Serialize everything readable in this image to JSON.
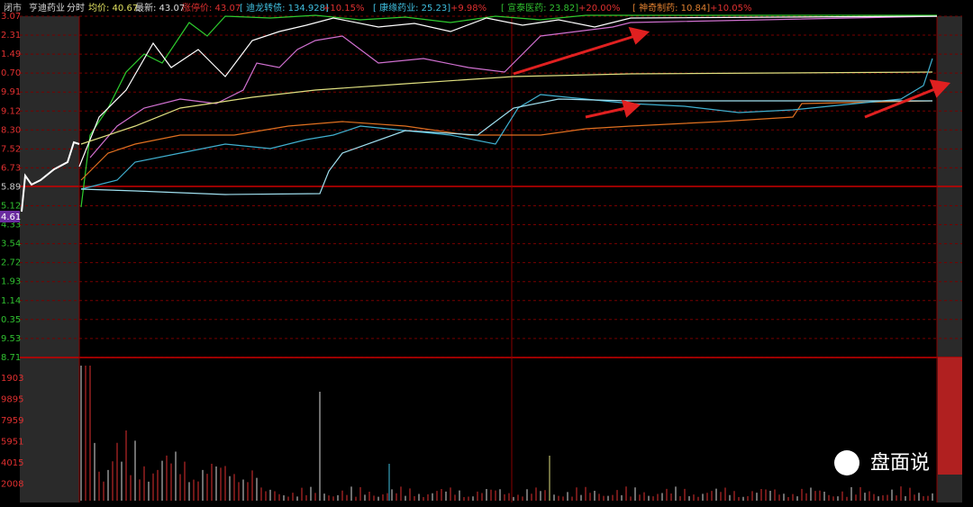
{
  "header": {
    "status": "闭市",
    "stock": "亨迪药业",
    "mode": "分时",
    "avg": "均价: 40.67",
    "latest": "最新: 43.07",
    "limit": "涨停价: 43.07",
    "related": [
      {
        "name": "[ 迪龙转债: 134.928]",
        "change": "+10.15%"
      },
      {
        "name": "[ 康缘药业: 25.23]",
        "change": "+9.98%"
      },
      {
        "name": "[ 宣泰医药: 23.82]",
        "change": "+20.00%"
      },
      {
        "name": "[ 神奇制药: 10.84]",
        "change": "+10.05%"
      }
    ]
  },
  "left_axis": [
    "3.07",
    "2.31",
    "1.49",
    "0.70",
    "9.91",
    "9.12",
    "8.30",
    "7.52",
    "6.73",
    "5.89",
    "5.12",
    "4.33",
    "3.54",
    "2.72",
    "1.93",
    "1.14",
    "0.35",
    "9.53",
    "8.71"
  ],
  "marker": "4.61",
  "volume_axis": [
    "1903",
    "9895",
    "7959",
    "5951",
    "4015",
    "2008"
  ],
  "watermark": "盘面说"
}
